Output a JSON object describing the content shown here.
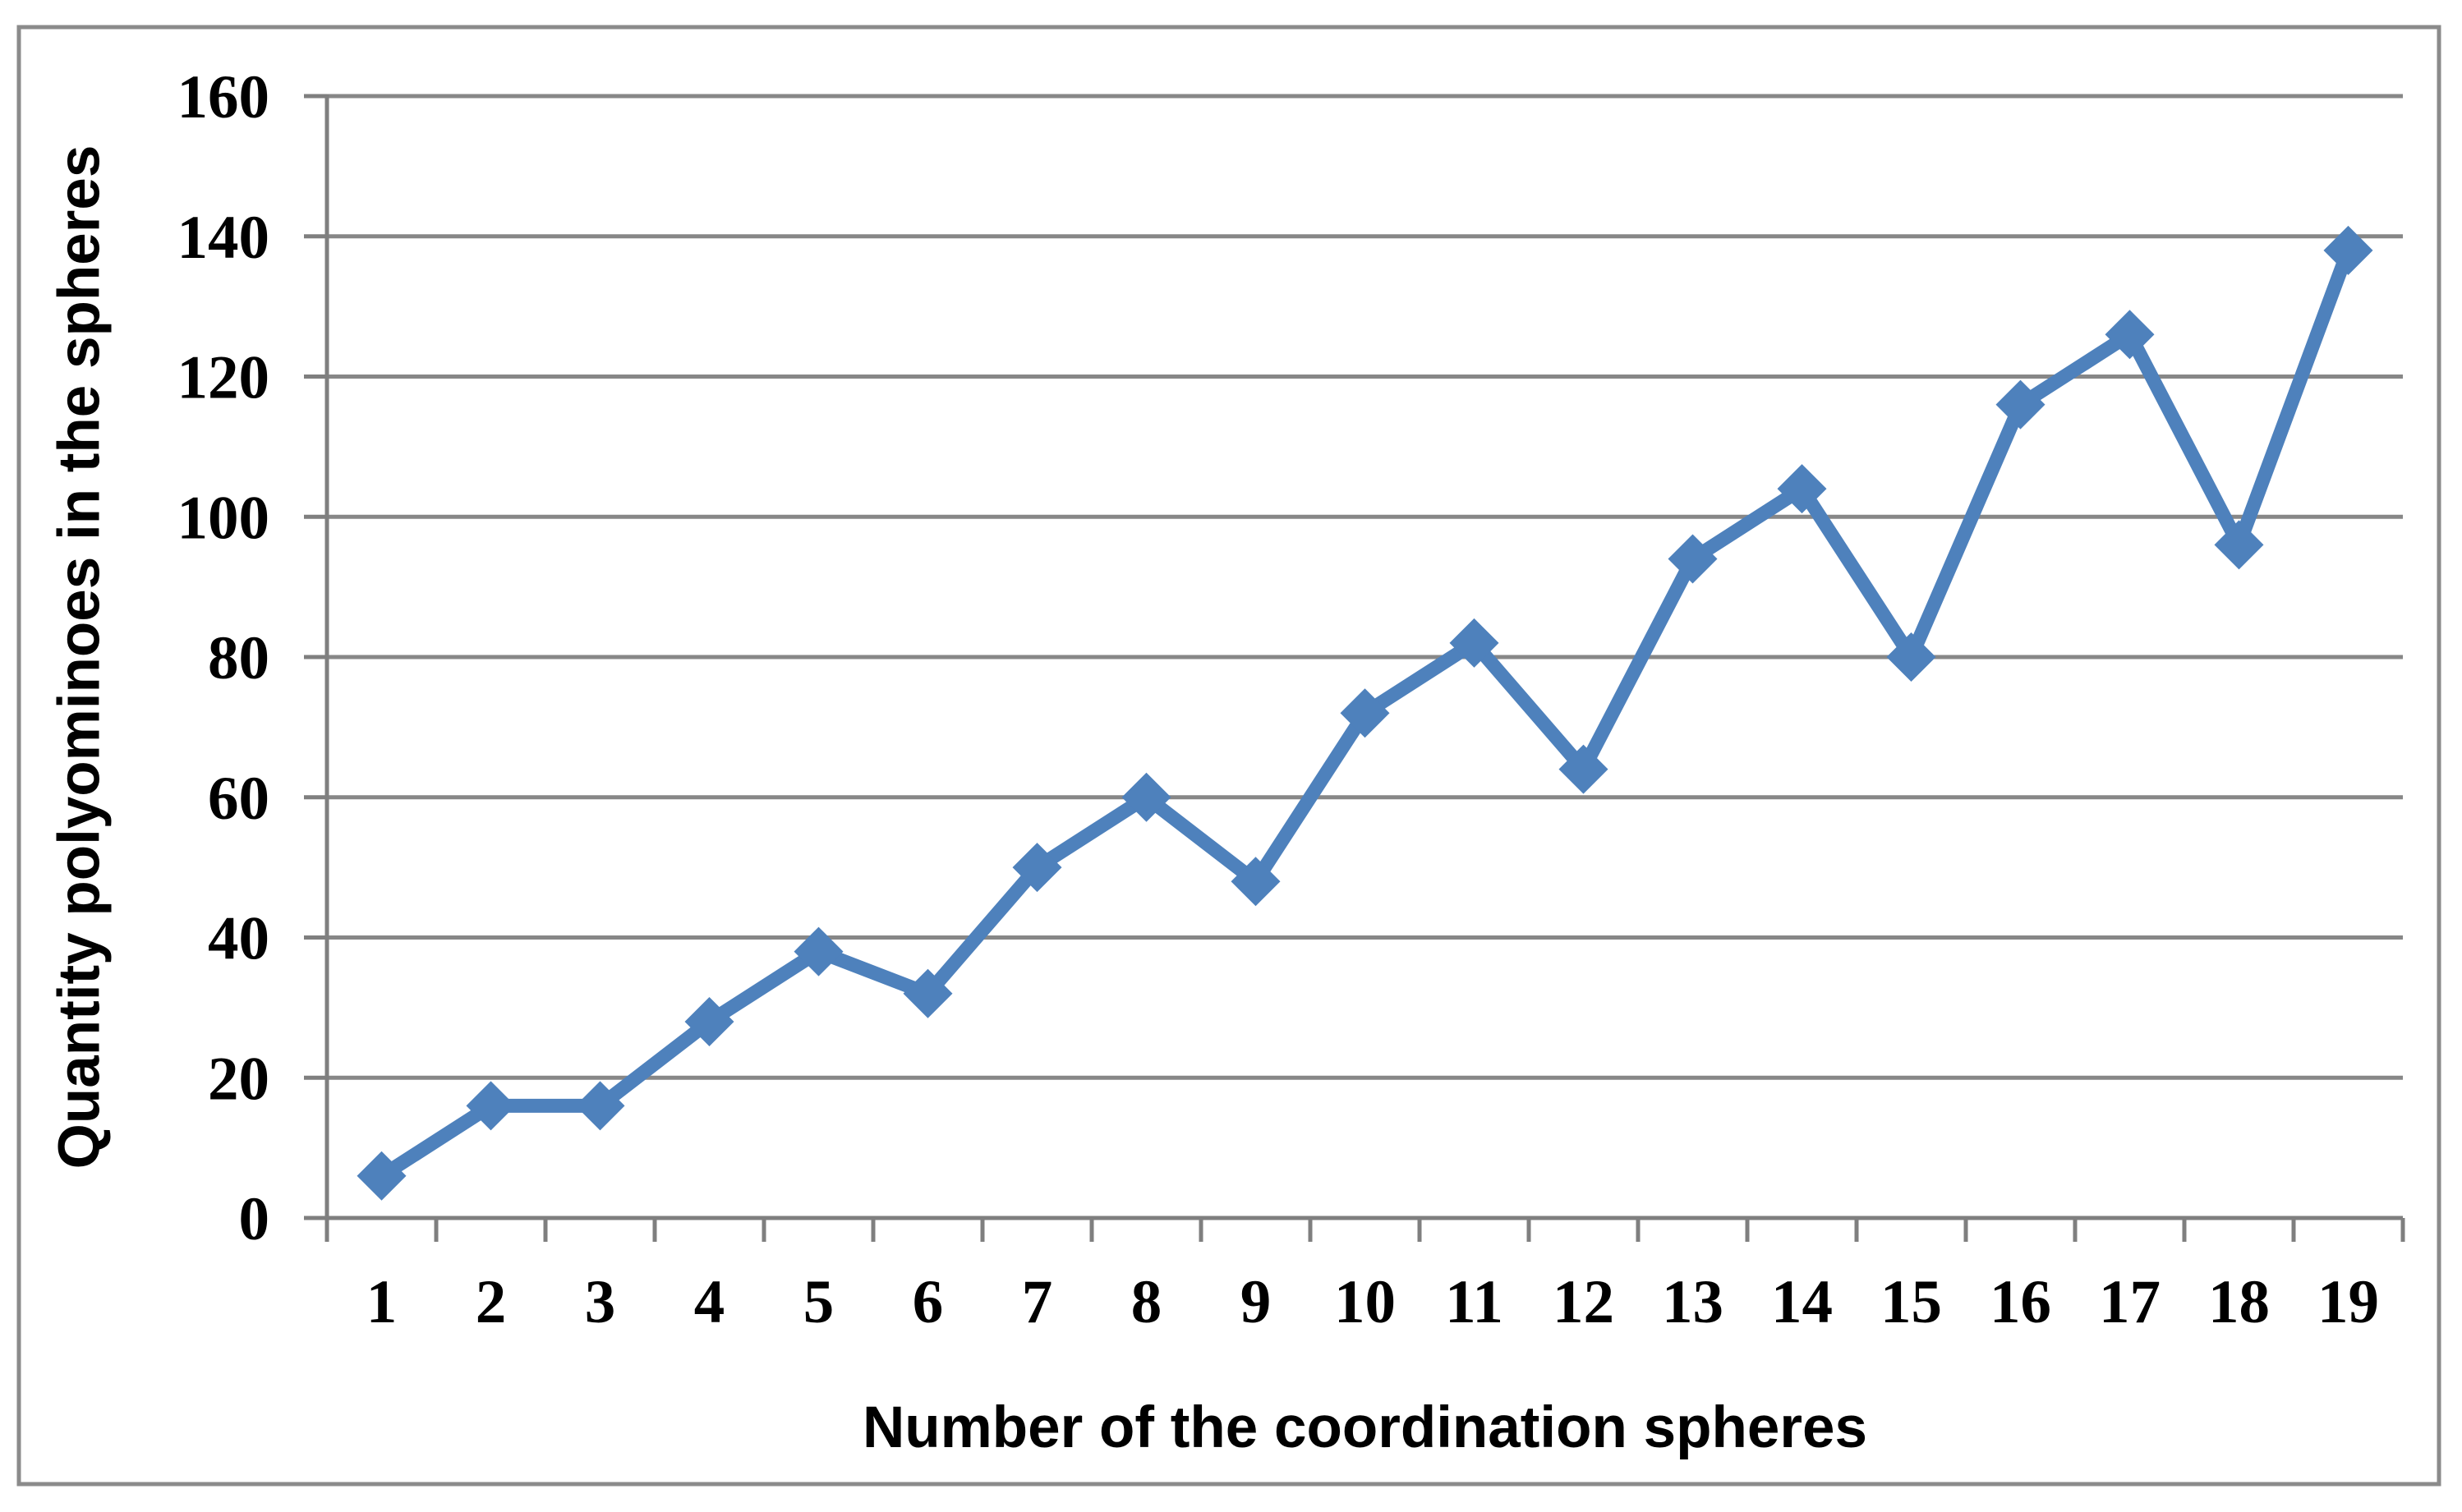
{
  "figure": {
    "background": "#ffffff",
    "border_color": "#8B8B8B"
  },
  "chart_data": {
    "type": "line",
    "title": "",
    "xlabel": "Number of the coordination spheres",
    "ylabel": "Quantity polyominoes in the spheres",
    "categories": [
      "1",
      "2",
      "3",
      "4",
      "5",
      "6",
      "7",
      "8",
      "9",
      "10",
      "11",
      "12",
      "13",
      "14",
      "15",
      "16",
      "17",
      "18",
      "19"
    ],
    "series": [
      {
        "marker": "diamond",
        "color": "#4E81BC",
        "values": [
          6,
          16,
          16,
          28,
          38,
          32,
          50,
          60,
          48,
          72,
          82,
          64,
          94,
          104,
          80,
          116,
          126,
          96,
          138
        ]
      }
    ],
    "ylim": [
      0,
      160
    ],
    "yticks": [
      0,
      20,
      40,
      60,
      80,
      100,
      120,
      140,
      160
    ],
    "grid": "horizontal",
    "legend": "none",
    "gridline_color": "#878787",
    "axis_color": "#7F7F7F",
    "tick_label_color": "#000000"
  }
}
